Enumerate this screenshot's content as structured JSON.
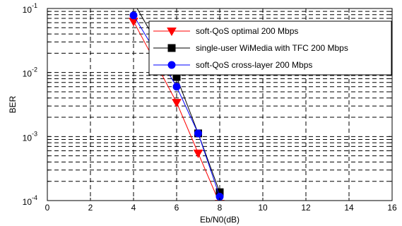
{
  "chart_data": {
    "type": "line",
    "xlabel": "Eb/N0(dB)",
    "ylabel": "BER",
    "xlim": [
      0,
      16
    ],
    "ylim": [
      0.0001,
      0.1
    ],
    "yscale": "log",
    "grid": true,
    "legend_position": "top-right",
    "x_ticks": [
      0,
      2,
      4,
      6,
      8,
      10,
      12,
      14,
      16
    ],
    "x_tick_labels": [
      "0",
      "2",
      "4",
      "6",
      "8",
      "10",
      "12",
      "14",
      "16"
    ],
    "y_ticks": [
      0.0001,
      0.001,
      0.01,
      0.1
    ],
    "y_tick_labels": [
      {
        "base": "10",
        "exp": "-4"
      },
      {
        "base": "10",
        "exp": "-3"
      },
      {
        "base": "10",
        "exp": "-2"
      },
      {
        "base": "10",
        "exp": "-1"
      }
    ],
    "series": [
      {
        "name": "soft-QoS optimal 200 Mbps",
        "color": "#ff0000",
        "marker": "triangle-down",
        "x": [
          4,
          6,
          7,
          8
        ],
        "y": [
          0.063,
          0.0034,
          0.00055,
          9e-05
        ]
      },
      {
        "name": "single-user WiMedia with TFC 200 Mbps",
        "color": "#000000",
        "marker": "square",
        "x": [
          4,
          6,
          7,
          8
        ],
        "y": [
          0.125,
          0.0085,
          0.00112,
          0.000135
        ]
      },
      {
        "name": "soft-QoS cross-layer 200 Mbps",
        "color": "#0000ff",
        "marker": "circle",
        "x": [
          4,
          6,
          7,
          8
        ],
        "y": [
          0.078,
          0.006,
          0.00112,
          0.000115
        ]
      }
    ]
  }
}
